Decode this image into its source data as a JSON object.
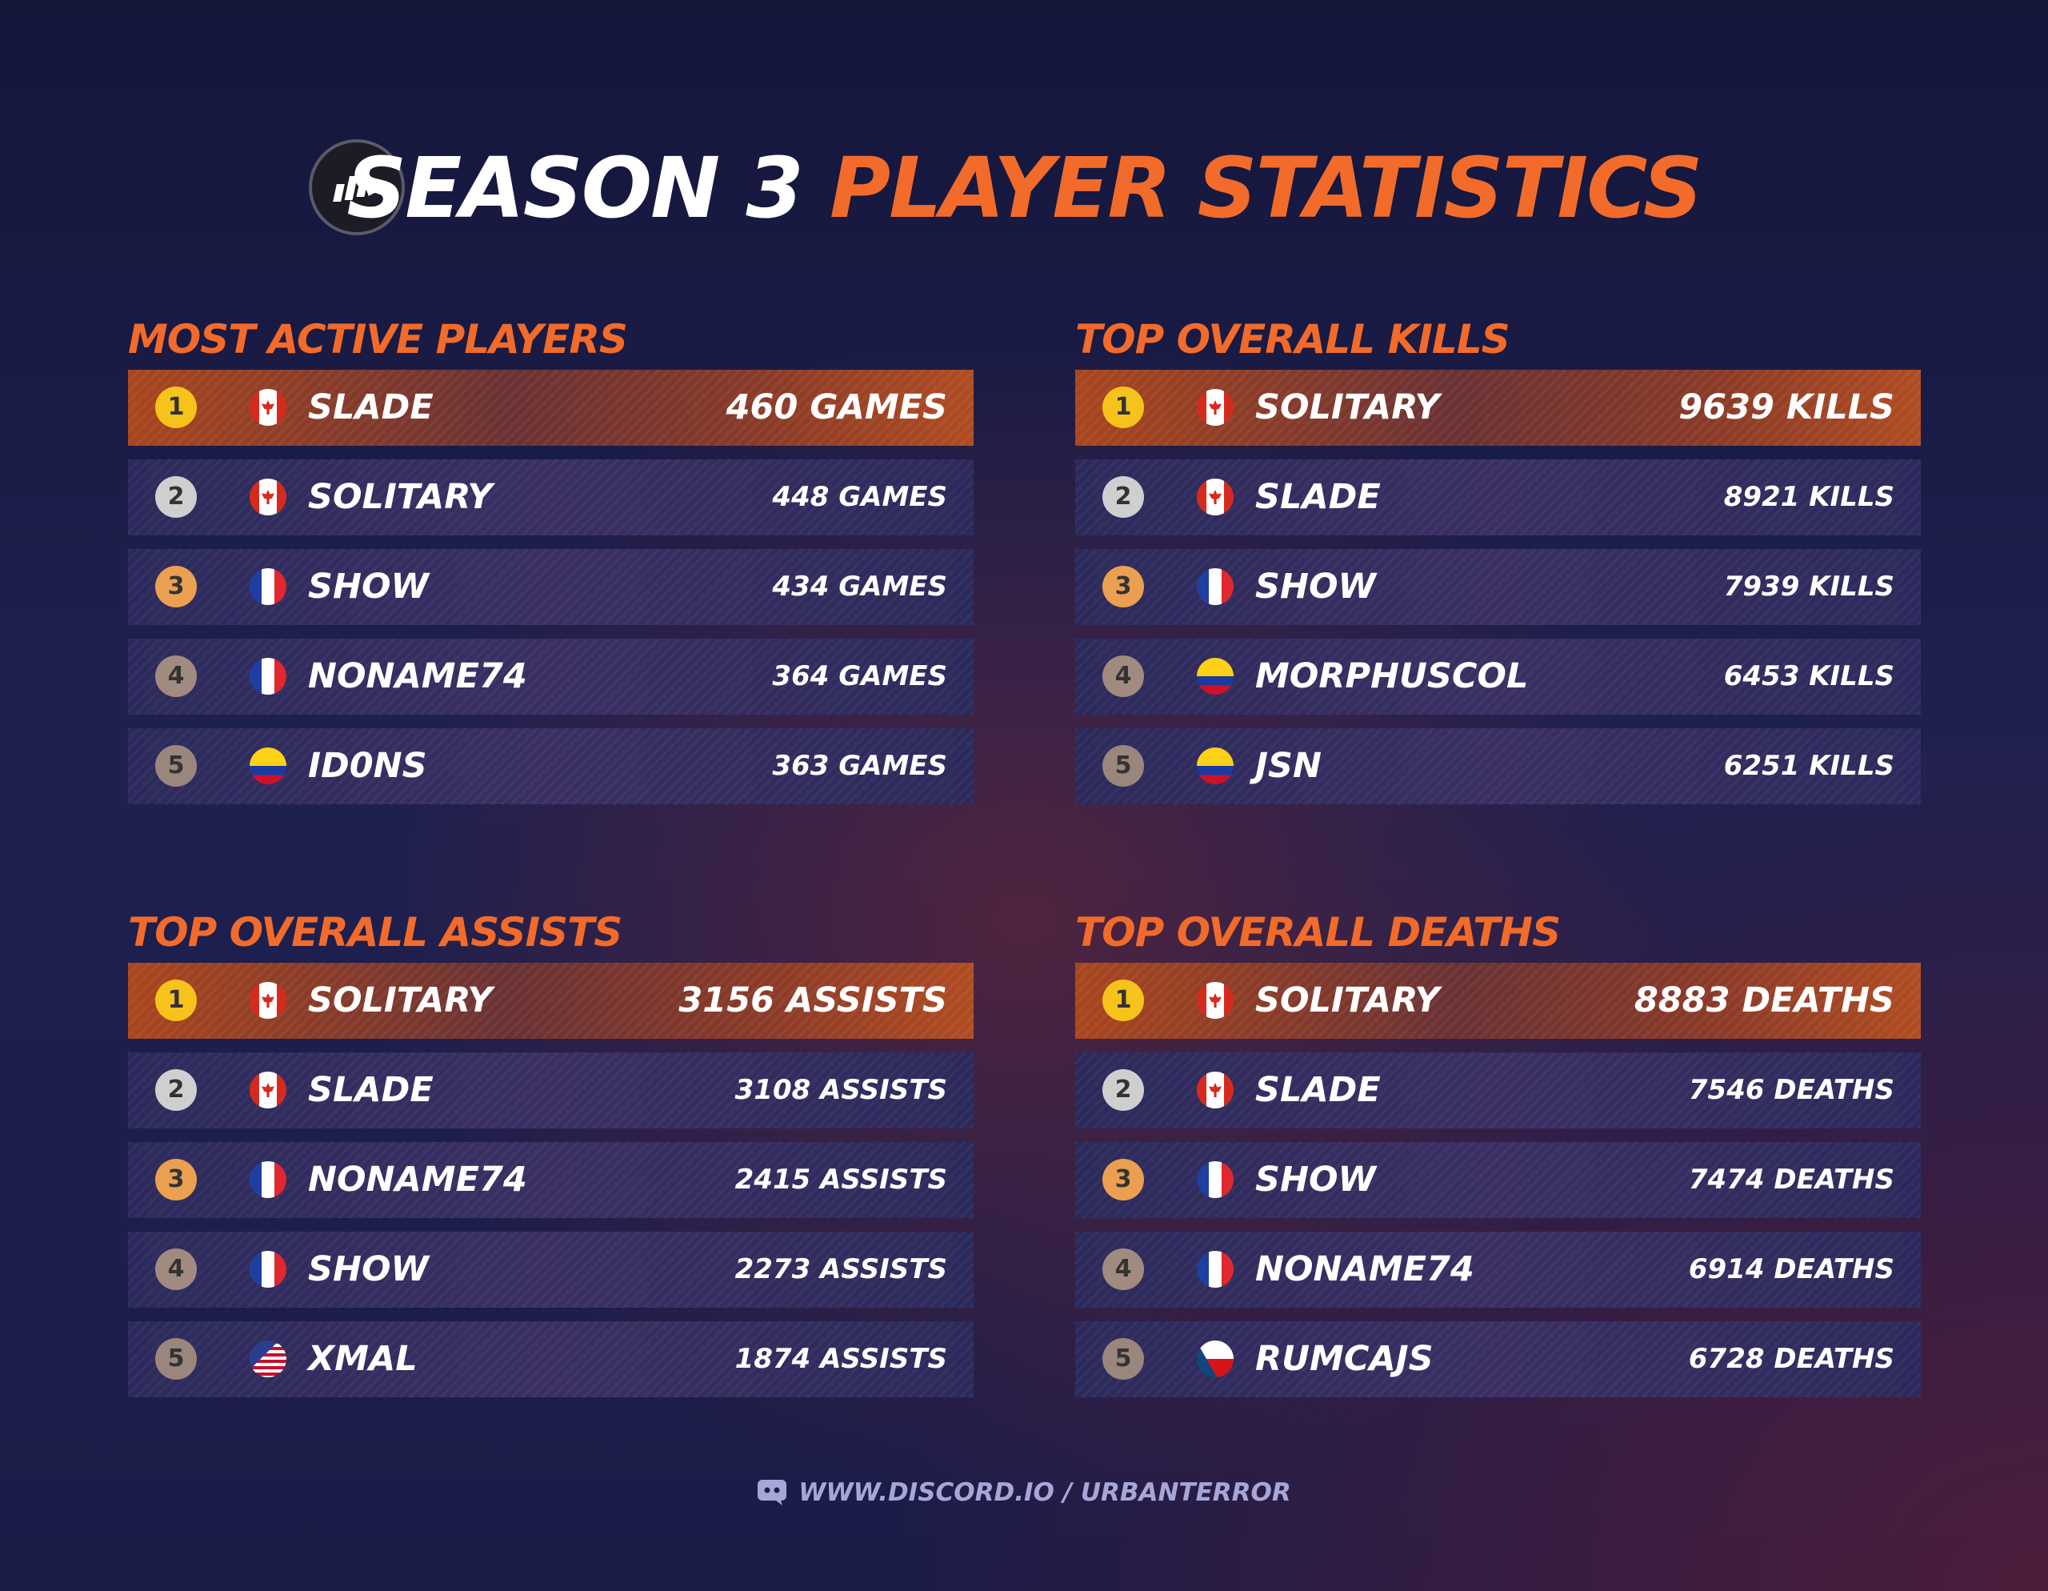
{
  "header": {
    "title_white": "SEASON 3",
    "title_orange": "PLAYER STATISTICS"
  },
  "sections": [
    {
      "title": "MOST ACTIVE PLAYERS",
      "rows": [
        {
          "rank": 1,
          "flag": "ca",
          "name": "SLADE",
          "value": "460 GAMES"
        },
        {
          "rank": 2,
          "flag": "ca",
          "name": "SOLITARY",
          "value": "448 GAMES"
        },
        {
          "rank": 3,
          "flag": "fr",
          "name": "SHOW",
          "value": "434 GAMES"
        },
        {
          "rank": 4,
          "flag": "fr",
          "name": "NONAME74",
          "value": "364 GAMES"
        },
        {
          "rank": 5,
          "flag": "co",
          "name": "ID0NS",
          "value": "363 GAMES"
        }
      ]
    },
    {
      "title": "TOP OVERALL KILLS",
      "rows": [
        {
          "rank": 1,
          "flag": "ca",
          "name": "SOLITARY",
          "value": "9639 KILLS"
        },
        {
          "rank": 2,
          "flag": "ca",
          "name": "SLADE",
          "value": "8921 KILLS"
        },
        {
          "rank": 3,
          "flag": "fr",
          "name": "SHOW",
          "value": "7939 KILLS"
        },
        {
          "rank": 4,
          "flag": "co",
          "name": "MORPHUSCOL",
          "value": "6453 KILLS"
        },
        {
          "rank": 5,
          "flag": "co",
          "name": "JSN",
          "value": "6251 KILLS"
        }
      ]
    },
    {
      "title": "TOP OVERALL ASSISTS",
      "rows": [
        {
          "rank": 1,
          "flag": "ca",
          "name": "SOLITARY",
          "value": "3156 ASSISTS"
        },
        {
          "rank": 2,
          "flag": "ca",
          "name": "SLADE",
          "value": "3108 ASSISTS"
        },
        {
          "rank": 3,
          "flag": "fr",
          "name": "NONAME74",
          "value": "2415 ASSISTS"
        },
        {
          "rank": 4,
          "flag": "fr",
          "name": "SHOW",
          "value": "2273 ASSISTS"
        },
        {
          "rank": 5,
          "flag": "us",
          "name": "XMAL",
          "value": "1874 ASSISTS"
        }
      ]
    },
    {
      "title": "TOP OVERALL DEATHS",
      "rows": [
        {
          "rank": 1,
          "flag": "ca",
          "name": "SOLITARY",
          "value": "8883 DEATHS"
        },
        {
          "rank": 2,
          "flag": "ca",
          "name": "SLADE",
          "value": "7546 DEATHS"
        },
        {
          "rank": 3,
          "flag": "fr",
          "name": "SHOW",
          "value": "7474 DEATHS"
        },
        {
          "rank": 4,
          "flag": "fr",
          "name": "NONAME74",
          "value": "6914 DEATHS"
        },
        {
          "rank": 5,
          "flag": "cz",
          "name": "RUMCAJS",
          "value": "6728 DEATHS"
        }
      ]
    }
  ],
  "footer": {
    "url": "WWW.DISCORD.IO / URBANTERROR"
  }
}
